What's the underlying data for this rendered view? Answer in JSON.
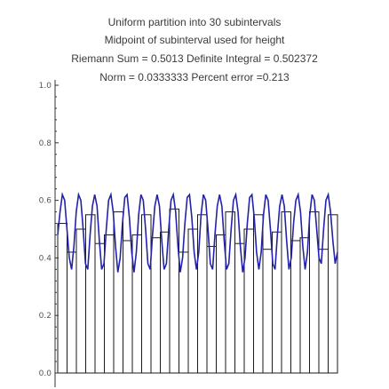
{
  "header": {
    "line1": "Uniform partition into 30 subintervals",
    "line2": "Midpoint of subinterval used for height",
    "line3": "Riemann Sum = 0.5013   Definite Integral = 0.502372",
    "line4": "Norm = 0.0333333   Percent error =0.213"
  },
  "chart_data": {
    "type": "bar",
    "subtype": "riemann-sum-midpoint",
    "partitions": 30,
    "interval": [
      0,
      1
    ],
    "ylim": [
      0,
      1.0
    ],
    "yticks": [
      "0.0",
      "0.2",
      "0.4",
      "0.6",
      "0.8",
      "1.0"
    ],
    "xlabel": "",
    "ylabel": "",
    "grid": false,
    "rect_heights": [
      0.52,
      0.42,
      0.5,
      0.55,
      0.45,
      0.48,
      0.56,
      0.46,
      0.48,
      0.55,
      0.47,
      0.49,
      0.57,
      0.42,
      0.5,
      0.55,
      0.44,
      0.48,
      0.56,
      0.45,
      0.5,
      0.55,
      0.43,
      0.49,
      0.56,
      0.46,
      0.47,
      0.56,
      0.43,
      0.55
    ],
    "curve_samples": [
      0.48,
      0.56,
      0.62,
      0.6,
      0.5,
      0.4,
      0.36,
      0.44,
      0.56,
      0.62,
      0.6,
      0.5,
      0.38,
      0.36,
      0.48,
      0.58,
      0.62,
      0.58,
      0.46,
      0.36,
      0.38,
      0.5,
      0.6,
      0.62,
      0.56,
      0.44,
      0.35,
      0.4,
      0.52,
      0.61,
      0.62,
      0.54,
      0.42,
      0.35,
      0.42,
      0.55,
      0.62,
      0.6,
      0.5,
      0.38,
      0.36,
      0.48,
      0.58,
      0.62,
      0.58,
      0.46,
      0.36,
      0.38,
      0.5,
      0.6,
      0.62,
      0.56,
      0.44,
      0.35,
      0.4,
      0.52,
      0.61,
      0.62,
      0.54,
      0.42,
      0.36,
      0.42,
      0.55,
      0.62,
      0.6,
      0.5,
      0.38,
      0.36,
      0.48,
      0.58,
      0.62,
      0.58,
      0.46,
      0.36,
      0.38,
      0.5,
      0.6,
      0.62,
      0.56,
      0.44,
      0.35,
      0.4,
      0.52,
      0.61,
      0.62,
      0.54,
      0.42,
      0.36,
      0.42,
      0.55,
      0.62,
      0.6,
      0.5,
      0.38,
      0.36,
      0.48,
      0.58,
      0.62,
      0.58,
      0.46,
      0.36,
      0.4,
      0.52,
      0.6,
      0.62,
      0.56,
      0.44,
      0.36,
      0.42,
      0.55,
      0.62,
      0.6,
      0.5,
      0.4,
      0.38,
      0.5,
      0.6,
      0.62,
      0.56,
      0.46,
      0.38,
      0.42
    ],
    "colors": {
      "rectangles": "#1a1a1a",
      "curve": "#2222aa",
      "axes": "#333333"
    }
  }
}
